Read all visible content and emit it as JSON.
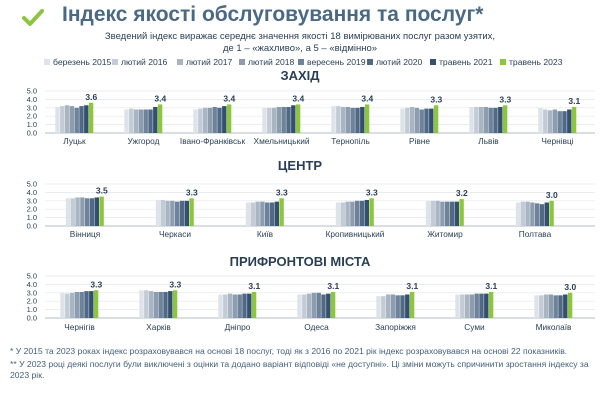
{
  "title": "Індекс якості обслуговування та послуг*",
  "subtitle_line1": "Зведений індекс виражає середнє значення якості 18 вимірюваних послуг разом узятих,",
  "subtitle_line2": "де 1 – «жахливо», а 5 – «відмінно»",
  "colors": {
    "title": "#4a6984",
    "header_check": "#8cc63f",
    "series": [
      "#dde3e9",
      "#c3ccd6",
      "#a9b5c2",
      "#8e9dae",
      "#6e829a",
      "#506985",
      "#354f6f",
      "#8cc63f"
    ]
  },
  "legend": [
    "березень 2015",
    "лютий 2016",
    "лютий 2017",
    "лютий 2018",
    "вересень 2019",
    "лютий 2020",
    "травень 2021",
    "травень 2023"
  ],
  "chart_data": [
    {
      "type": "bar",
      "title": "ЗАХІД",
      "ylim": [
        0,
        5
      ],
      "yticks": [
        "0.0",
        "1.0",
        "2.0",
        "3.0",
        "4.0",
        "5.0"
      ],
      "categories": [
        "Луцьк",
        "Ужгород",
        "Івано-Франківськ",
        "Хмельницький",
        "Тернопіль",
        "Рівне",
        "Львів",
        "Чернівці"
      ],
      "values": [
        [
          3.1,
          3.2,
          3.3,
          3.2,
          3.0,
          3.2,
          3.3,
          3.6
        ],
        [
          2.8,
          2.9,
          2.8,
          2.8,
          2.8,
          2.8,
          3.1,
          3.4
        ],
        [
          2.8,
          2.9,
          3.0,
          3.0,
          3.1,
          3.0,
          3.2,
          3.4
        ],
        [
          3.0,
          3.0,
          3.0,
          3.1,
          3.1,
          3.1,
          3.3,
          3.4
        ],
        [
          3.2,
          3.2,
          3.1,
          3.1,
          3.0,
          3.0,
          3.1,
          3.4
        ],
        [
          2.9,
          3.0,
          3.1,
          3.0,
          2.8,
          2.9,
          2.9,
          3.3
        ],
        [
          3.1,
          3.1,
          3.1,
          3.1,
          3.0,
          3.0,
          3.1,
          3.3
        ],
        [
          3.0,
          2.8,
          2.7,
          2.8,
          2.6,
          2.6,
          2.8,
          3.1
        ]
      ],
      "labels": [
        "3.6",
        "3.4",
        "3.4",
        "3.4",
        "3.4",
        "3.3",
        "3.3",
        "3.1"
      ]
    },
    {
      "type": "bar",
      "title": "ЦЕНТР",
      "ylim": [
        0,
        5
      ],
      "yticks": [
        "0.0",
        "1.0",
        "2.0",
        "3.0",
        "4.0",
        "5.0"
      ],
      "categories": [
        "Вінниця",
        "Черкаси",
        "Київ",
        "Кропивницький",
        "Житомир",
        "Полтава"
      ],
      "values": [
        [
          3.3,
          3.3,
          3.4,
          3.4,
          3.3,
          3.3,
          3.4,
          3.5
        ],
        [
          3.1,
          3.1,
          3.0,
          3.0,
          2.9,
          3.0,
          3.0,
          3.3
        ],
        [
          2.8,
          2.8,
          2.9,
          2.9,
          2.8,
          2.8,
          2.9,
          3.3
        ],
        [
          2.8,
          2.8,
          2.9,
          2.9,
          3.0,
          3.0,
          3.1,
          3.3
        ],
        [
          3.0,
          3.0,
          3.0,
          2.9,
          2.9,
          2.9,
          2.9,
          3.2
        ],
        [
          2.8,
          2.9,
          2.9,
          2.8,
          2.7,
          2.6,
          2.8,
          3.0
        ]
      ],
      "labels": [
        "3.5",
        "3.3",
        "3.3",
        "3.3",
        "3.2",
        "3.0"
      ]
    },
    {
      "type": "bar",
      "title": "ПРИФРОНТОВІ МІСТА",
      "ylim": [
        0,
        5
      ],
      "yticks": [
        "0.0",
        "1.0",
        "2.0",
        "3.0",
        "4.0",
        "5.0"
      ],
      "categories": [
        "Чернігів",
        "Харків",
        "Дніпро",
        "Одеса",
        "Запоріжжя",
        "Суми",
        "Миколаїв"
      ],
      "values": [
        [
          3.0,
          2.9,
          3.0,
          3.1,
          3.1,
          3.2,
          3.2,
          3.3
        ],
        [
          3.3,
          3.3,
          3.2,
          3.1,
          3.1,
          3.1,
          3.2,
          3.3
        ],
        [
          2.8,
          2.8,
          2.9,
          2.8,
          2.8,
          2.9,
          2.9,
          3.1
        ],
        [
          2.8,
          2.8,
          2.9,
          3.0,
          3.0,
          2.8,
          2.9,
          3.1
        ],
        [
          2.6,
          2.6,
          2.8,
          2.8,
          2.7,
          2.7,
          2.8,
          3.1
        ],
        [
          2.8,
          2.8,
          2.8,
          2.8,
          2.9,
          2.9,
          2.9,
          3.1
        ],
        [
          2.7,
          2.7,
          2.8,
          2.8,
          2.7,
          2.7,
          2.8,
          3.0
        ]
      ],
      "labels": [
        "3.3",
        "3.3",
        "3.1",
        "3.1",
        "3.1",
        "3.1",
        "3.0"
      ]
    }
  ],
  "footnotes": [
    "* У 2015 та 2023 роках індекс розраховувався на основі 18 послуг, тоді як з 2016 по 2021 рік індекс розраховувався на основі 22 показників.",
    "** У 2023 році деякі послуги були виключені з оцінки та додано варіант відповіді «не доступні». Ці зміни можуть спричинити зростання індексу за 2023 рік."
  ]
}
